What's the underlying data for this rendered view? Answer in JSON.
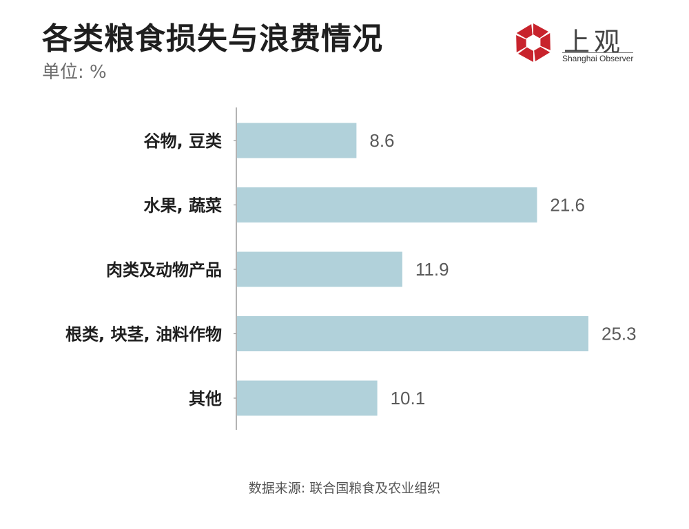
{
  "header": {
    "title": "各类粮食损失与浪费情况",
    "unit": "单位: %"
  },
  "logo": {
    "name": "上观",
    "subtitle": "Shanghai Observer",
    "color": "#c8232c"
  },
  "source": "数据来源: 联合国粮食及农业组织",
  "chart_data": {
    "type": "bar",
    "orientation": "horizontal",
    "categories": [
      "谷物, 豆类",
      "水果, 蔬菜",
      "肉类及动物产品",
      "根类, 块茎, 油料作物",
      "其他"
    ],
    "values": [
      8.6,
      21.6,
      11.9,
      25.3,
      10.1
    ],
    "title": "各类粮食损失与浪费情况",
    "unit": "%",
    "xlim": [
      0,
      30
    ],
    "bar_color": "#b1d1da",
    "grid": false,
    "legend": "none",
    "data_labels": true
  }
}
